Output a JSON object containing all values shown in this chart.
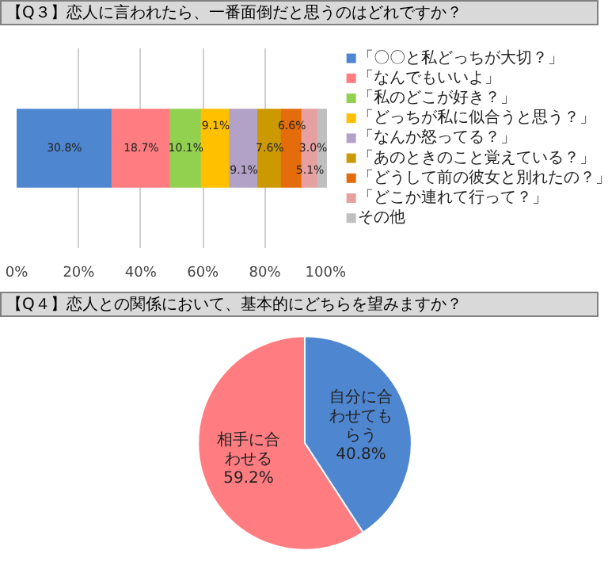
{
  "chart_data": [
    {
      "type": "bar",
      "title": "【Q３】恋人に言われたら、一番面倒だと思うのはどれですか？",
      "orientation": "horizontal",
      "stacked": true,
      "categories": [
        null
      ],
      "xlim": [
        0,
        100
      ],
      "xticks": [
        {
          "value": 0,
          "label": "0%"
        },
        {
          "value": 20,
          "label": "20%"
        },
        {
          "value": 40,
          "label": "40%"
        },
        {
          "value": 60,
          "label": "60%"
        },
        {
          "value": 80,
          "label": "80%"
        },
        {
          "value": 100,
          "label": "100%"
        }
      ],
      "grid": "x",
      "legend": "right",
      "series": [
        {
          "name": "「〇〇と私どっちが大切？」",
          "color": "#4f86d0",
          "values": [
            30.8
          ],
          "value_labels": [
            "30.8%"
          ]
        },
        {
          "name": "「なんでもいいよ」",
          "color": "#ff7c80",
          "values": [
            18.7
          ],
          "value_labels": [
            "18.7%"
          ]
        },
        {
          "name": "「私のどこが好き？」",
          "color": "#92d050",
          "values": [
            10.1
          ],
          "value_labels": [
            "10.1%"
          ]
        },
        {
          "name": "「どっちが私に似合うと思う？」",
          "color": "#ffc000",
          "values": [
            9.1
          ],
          "value_labels": [
            "9.1%"
          ]
        },
        {
          "name": "「なんか怒ってる？」",
          "color": "#b3a2c7",
          "values": [
            9.1
          ],
          "value_labels": [
            "9.1%"
          ]
        },
        {
          "name": "「あのときのこと覚えている？」",
          "color": "#cc9900",
          "values": [
            7.6
          ],
          "value_labels": [
            "7.6%"
          ]
        },
        {
          "name": "「どうして前の彼女と別れたの？」",
          "color": "#e46c0a",
          "values": [
            6.6
          ],
          "value_labels": [
            "6.6%"
          ]
        },
        {
          "name": "「どこか連れて行って？」",
          "color": "#e6a0a0",
          "values": [
            5.1
          ],
          "value_labels": [
            "5.1%"
          ]
        },
        {
          "name": "その他",
          "color": "#bfbfbf",
          "values": [
            3.0
          ],
          "value_labels": [
            "3.0%"
          ]
        }
      ]
    },
    {
      "type": "pie",
      "title": "【Q４】恋人との関係において、基本的にどちらを望みますか？",
      "categories": [
        "自分に合わせてもらう",
        "相手に合わせる"
      ],
      "values": [
        40.8,
        59.2
      ],
      "colors": [
        "#4f86d0",
        "#ff7c80"
      ],
      "value_labels": [
        "40.8%",
        "59.2%"
      ],
      "legend": false
    }
  ]
}
